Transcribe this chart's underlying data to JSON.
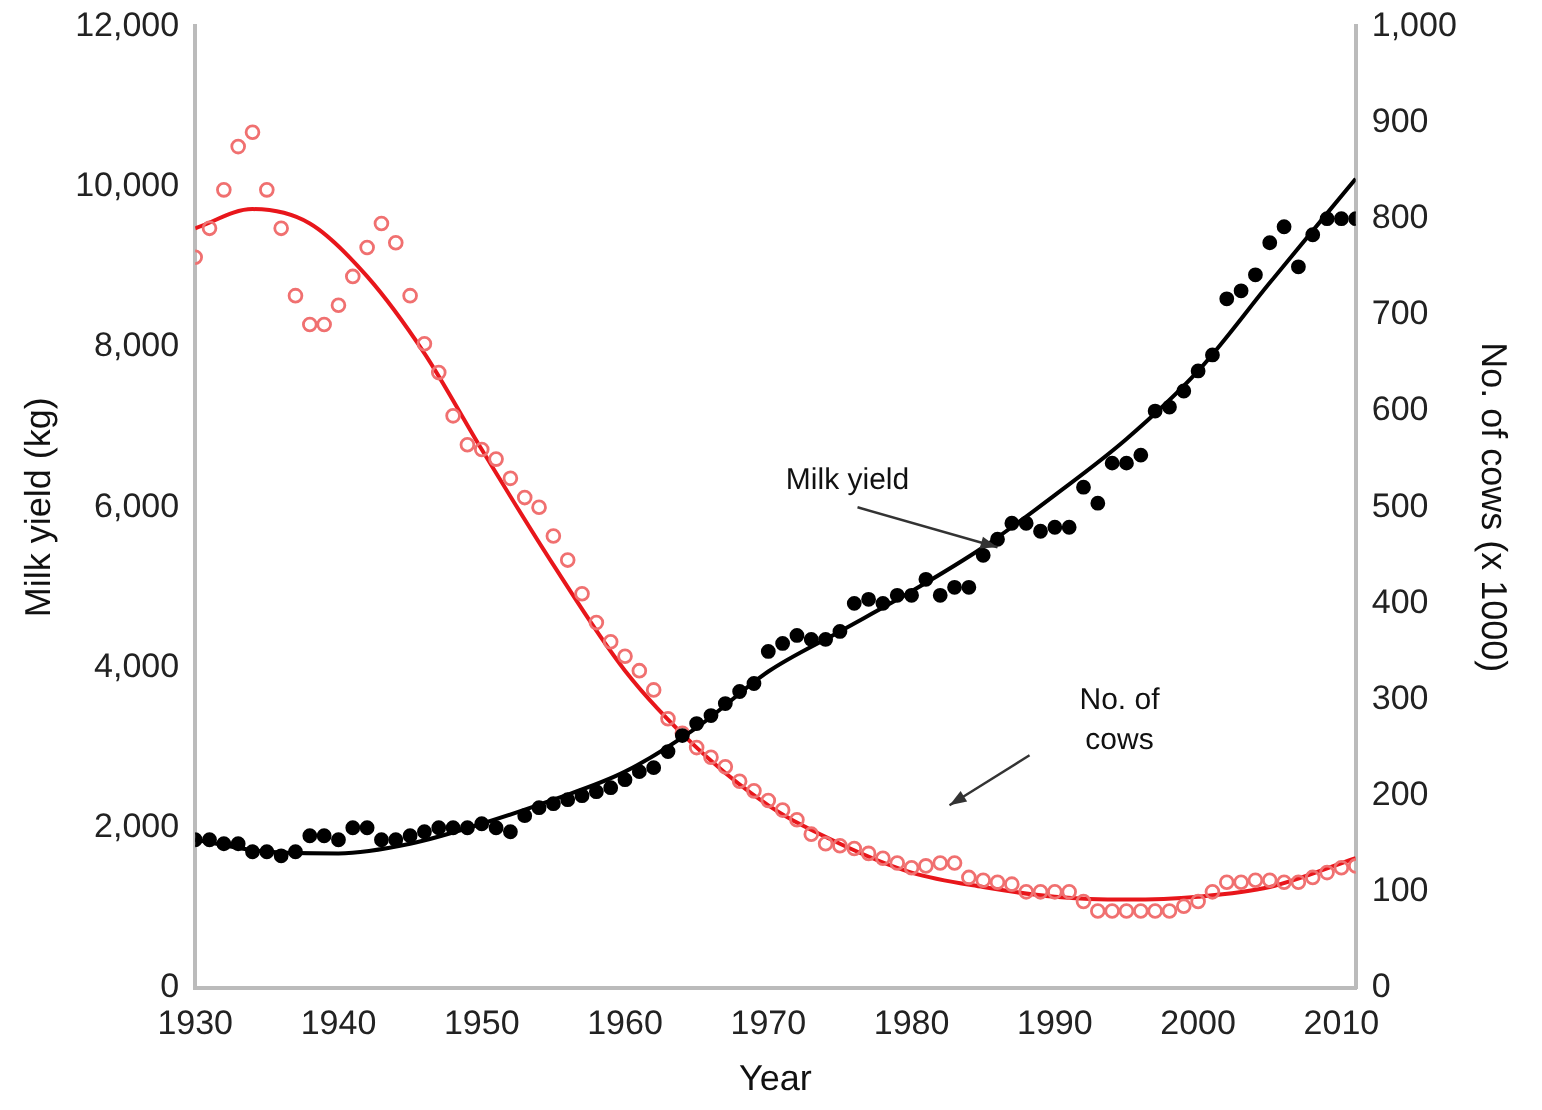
{
  "chart_data": {
    "type": "scatter",
    "xlabel": "Year",
    "ylabel": "Milk yield (kg)",
    "y2label": "No. of cows (x 1000)",
    "xlim": [
      1930,
      2011
    ],
    "xticks": [
      1930,
      1940,
      1950,
      1960,
      1970,
      1980,
      1990,
      2000,
      2010
    ],
    "ylim": [
      0,
      12000
    ],
    "yticks": [
      0,
      {
        "value": 2000,
        "label": "2,000"
      },
      {
        "value": 4000,
        "label": "4,000"
      },
      {
        "value": 6000,
        "label": "6,000"
      },
      {
        "value": 8000,
        "label": "8,000"
      },
      {
        "value": 10000,
        "label": "10,000"
      },
      {
        "value": 12000,
        "label": "12,000"
      }
    ],
    "y2lim": [
      0,
      1000
    ],
    "y2ticks": [
      0,
      100,
      200,
      300,
      400,
      500,
      600,
      700,
      800,
      900,
      {
        "value": 1000,
        "label": "1,000"
      }
    ],
    "grid": false,
    "legend": false,
    "marker": "circle",
    "annotations": [
      {
        "text": "Milk yield",
        "x": 1986,
        "y": 5500
      },
      "No. of cows"
    ],
    "series": [
      {
        "type": "scatter",
        "color": "#000000",
        "x": [
          1930,
          1931,
          1932,
          1933,
          1934,
          1935,
          1936,
          1937,
          1938,
          1939,
          1940,
          1941,
          1942,
          1943,
          1944,
          1945,
          1946,
          1947,
          1948,
          1949,
          1950,
          1951,
          1952,
          1953,
          1954,
          1955,
          1956,
          1957,
          1958,
          1959,
          1960,
          1961,
          1962,
          1963,
          1964,
          1965,
          1966,
          1967,
          1968,
          1969,
          1970,
          1971,
          1972,
          1973,
          1974,
          1975,
          1976,
          1977,
          1978,
          1979,
          1980,
          1981,
          1982,
          1983,
          1984,
          1985,
          1986,
          1987,
          1988,
          1989,
          1990,
          1991,
          1992,
          1993,
          1994,
          1995,
          1996,
          1997,
          1998,
          1999,
          2000,
          2001,
          2002,
          2003,
          2004,
          2005,
          2006,
          2007,
          2008,
          2009,
          2010,
          2011
        ],
        "values": [
          1850,
          1850,
          1800,
          1800,
          1700,
          1700,
          1650,
          1700,
          1900,
          1900,
          1850,
          2000,
          2000,
          1850,
          1850,
          1900,
          1950,
          2000,
          2000,
          2000,
          2050,
          2000,
          1950,
          2150,
          2250,
          2300,
          2350,
          2400,
          2450,
          2500,
          2600,
          2700,
          2750,
          2950,
          3150,
          3300,
          3400,
          3550,
          3700,
          3800,
          4200,
          4300,
          4400,
          4350,
          4350,
          4450,
          4800,
          4850,
          4800,
          4900,
          4900,
          5100,
          4900,
          5000,
          5000,
          5400,
          5600,
          5800,
          5800,
          5700,
          5750,
          5750,
          6250,
          6050,
          6550,
          6550,
          6650,
          7200,
          7250,
          7450,
          7700,
          7900,
          8600,
          8700,
          8900,
          9300,
          9500,
          9000,
          9400,
          9600,
          9600,
          9600
        ]
      },
      {
        "type": "line",
        "color": "#000000",
        "marker": "none",
        "x": [
          1930,
          1935,
          1940,
          1945,
          1950,
          1955,
          1960,
          1965,
          1970,
          1975,
          1980,
          1985,
          1990,
          1995,
          2000,
          2005,
          2011
        ],
        "values": [
          1850,
          1700,
          1680,
          1800,
          2050,
          2350,
          2700,
          3250,
          3950,
          4450,
          4950,
          5500,
          6150,
          6850,
          7700,
          8800,
          10100
        ]
      },
      {
        "type": "scatter",
        "color": "#f07070",
        "axis": "y2",
        "x": [
          1930,
          1931,
          1932,
          1933,
          1934,
          1935,
          1936,
          1937,
          1938,
          1939,
          1940,
          1941,
          1942,
          1943,
          1944,
          1945,
          1946,
          1947,
          1948,
          1949,
          1950,
          1951,
          1952,
          1953,
          1954,
          1955,
          1956,
          1957,
          1958,
          1959,
          1960,
          1961,
          1962,
          1963,
          1964,
          1965,
          1966,
          1967,
          1968,
          1969,
          1970,
          1971,
          1972,
          1973,
          1974,
          1975,
          1976,
          1977,
          1978,
          1979,
          1980,
          1981,
          1982,
          1983,
          1984,
          1985,
          1986,
          1987,
          1988,
          1989,
          1990,
          1991,
          1992,
          1993,
          1994,
          1995,
          1996,
          1997,
          1998,
          1999,
          2000,
          2001,
          2002,
          2003,
          2004,
          2005,
          2006,
          2007,
          2008,
          2009,
          2010,
          2011
        ],
        "values": [
          760,
          790,
          830,
          875,
          890,
          830,
          790,
          720,
          690,
          690,
          710,
          740,
          770,
          795,
          775,
          720,
          670,
          640,
          595,
          565,
          560,
          550,
          530,
          510,
          500,
          470,
          445,
          410,
          380,
          360,
          345,
          330,
          310,
          280,
          265,
          250,
          240,
          230,
          215,
          205,
          195,
          185,
          175,
          160,
          150,
          148,
          145,
          140,
          135,
          130,
          125,
          127,
          130,
          130,
          115,
          112,
          110,
          108,
          100,
          100,
          100,
          100,
          90,
          80,
          80,
          80,
          80,
          80,
          80,
          85,
          90,
          100,
          110,
          110,
          112,
          112,
          110,
          110,
          115,
          120,
          125,
          127
        ]
      },
      {
        "type": "line",
        "color": "#e8161b",
        "marker": "none",
        "axis": "y2",
        "x": [
          1930,
          1934,
          1938,
          1942,
          1946,
          1950,
          1955,
          1960,
          1965,
          1970,
          1975,
          1980,
          1985,
          1990,
          1995,
          2000,
          2005,
          2011
        ],
        "values": [
          790,
          810,
          795,
          740,
          660,
          560,
          440,
          330,
          250,
          190,
          150,
          120,
          105,
          95,
          92,
          95,
          105,
          135
        ]
      }
    ]
  }
}
